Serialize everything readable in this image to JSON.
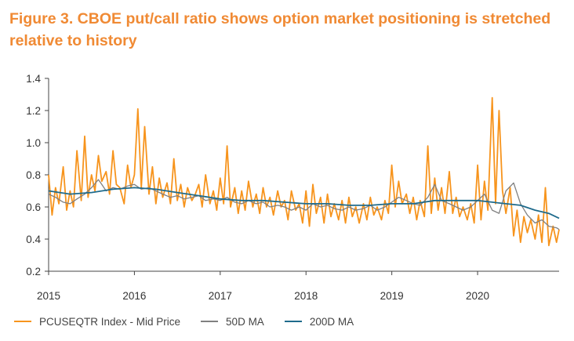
{
  "title": "Figure 3. CBOE put/call ratio shows option market positioning is stretched relative to history",
  "colors": {
    "title": "#F08A34",
    "orange": "#F7941D",
    "gray": "#808080",
    "teal": "#1F6B8C",
    "axis": "#444444"
  },
  "chart_data": {
    "type": "line",
    "title": "Figure 3. CBOE put/call ratio shows option market positioning is stretched relative to history",
    "xlabel": "",
    "ylabel": "",
    "xlim": [
      2015,
      2020.95
    ],
    "ylim": [
      0.2,
      1.4
    ],
    "yticks": [
      "0.2",
      "0.4",
      "0.6",
      "0.8",
      "1.0",
      "1.2",
      "1.4"
    ],
    "xticks": [
      "2015",
      "2016",
      "2017",
      "2018",
      "2019",
      "2020"
    ],
    "grid": false,
    "legend_position": "bottom",
    "series": [
      {
        "name": "PCUSEQTR Index - Mid Price",
        "color": "#F7941D",
        "x": [
          2015.0,
          2015.04,
          2015.08,
          2015.12,
          2015.17,
          2015.21,
          2015.25,
          2015.29,
          2015.33,
          2015.38,
          2015.42,
          2015.46,
          2015.5,
          2015.54,
          2015.58,
          2015.62,
          2015.67,
          2015.71,
          2015.75,
          2015.79,
          2015.83,
          2015.88,
          2015.92,
          2015.96,
          2016.0,
          2016.04,
          2016.08,
          2016.12,
          2016.17,
          2016.21,
          2016.25,
          2016.29,
          2016.33,
          2016.38,
          2016.42,
          2016.46,
          2016.5,
          2016.54,
          2016.58,
          2016.62,
          2016.67,
          2016.71,
          2016.75,
          2016.79,
          2016.83,
          2016.88,
          2016.92,
          2016.96,
          2017.0,
          2017.04,
          2017.08,
          2017.12,
          2017.17,
          2017.21,
          2017.25,
          2017.29,
          2017.33,
          2017.38,
          2017.42,
          2017.46,
          2017.5,
          2017.54,
          2017.58,
          2017.62,
          2017.67,
          2017.71,
          2017.75,
          2017.79,
          2017.83,
          2017.88,
          2017.92,
          2017.96,
          2018.0,
          2018.04,
          2018.08,
          2018.12,
          2018.17,
          2018.21,
          2018.25,
          2018.29,
          2018.33,
          2018.38,
          2018.42,
          2018.46,
          2018.5,
          2018.54,
          2018.58,
          2018.62,
          2018.67,
          2018.71,
          2018.75,
          2018.79,
          2018.83,
          2018.88,
          2018.92,
          2018.96,
          2019.0,
          2019.04,
          2019.08,
          2019.12,
          2019.17,
          2019.21,
          2019.25,
          2019.29,
          2019.33,
          2019.38,
          2019.42,
          2019.46,
          2019.5,
          2019.54,
          2019.58,
          2019.62,
          2019.67,
          2019.71,
          2019.75,
          2019.79,
          2019.83,
          2019.88,
          2019.92,
          2019.96,
          2020.0,
          2020.04,
          2020.08,
          2020.12,
          2020.17,
          2020.21,
          2020.25,
          2020.29,
          2020.33,
          2020.38,
          2020.42,
          2020.46,
          2020.5,
          2020.54,
          2020.58,
          2020.62,
          2020.67,
          2020.71,
          2020.75,
          2020.79,
          2020.83,
          2020.88,
          2020.92,
          2020.95
        ],
        "values": [
          0.8,
          0.55,
          0.72,
          0.62,
          0.85,
          0.58,
          0.7,
          0.6,
          0.95,
          0.64,
          1.04,
          0.66,
          0.8,
          0.7,
          0.92,
          0.76,
          0.82,
          0.68,
          0.95,
          0.74,
          0.72,
          0.62,
          0.86,
          0.72,
          0.8,
          1.21,
          0.72,
          1.1,
          0.68,
          0.85,
          0.62,
          0.78,
          0.66,
          0.75,
          0.62,
          0.9,
          0.64,
          0.74,
          0.6,
          0.72,
          0.64,
          0.68,
          0.74,
          0.6,
          0.8,
          0.62,
          0.7,
          0.58,
          0.78,
          0.62,
          0.98,
          0.6,
          0.72,
          0.56,
          0.7,
          0.58,
          0.76,
          0.6,
          0.68,
          0.56,
          0.72,
          0.6,
          0.66,
          0.55,
          0.7,
          0.6,
          0.64,
          0.52,
          0.7,
          0.58,
          0.62,
          0.5,
          0.7,
          0.48,
          0.74,
          0.56,
          0.66,
          0.5,
          0.68,
          0.54,
          0.62,
          0.52,
          0.64,
          0.5,
          0.66,
          0.54,
          0.6,
          0.5,
          0.62,
          0.52,
          0.66,
          0.55,
          0.6,
          0.52,
          0.64,
          0.56,
          0.86,
          0.6,
          0.76,
          0.62,
          0.68,
          0.56,
          0.66,
          0.52,
          0.64,
          0.54,
          0.98,
          0.56,
          0.78,
          0.58,
          0.72,
          0.56,
          0.82,
          0.56,
          0.66,
          0.54,
          0.6,
          0.52,
          0.62,
          0.5,
          0.86,
          0.52,
          0.76,
          0.58,
          1.28,
          0.62,
          1.2,
          0.7,
          0.56,
          0.72,
          0.42,
          0.58,
          0.38,
          0.54,
          0.44,
          0.52,
          0.4,
          0.55,
          0.38,
          0.72,
          0.36,
          0.48,
          0.38,
          0.46
        ]
      },
      {
        "name": "50D MA",
        "color": "#808080",
        "x": [
          2015.0,
          2015.08,
          2015.17,
          2015.25,
          2015.33,
          2015.42,
          2015.5,
          2015.58,
          2015.62,
          2015.67,
          2015.75,
          2015.83,
          2015.92,
          2016.0,
          2016.08,
          2016.17,
          2016.25,
          2016.33,
          2016.42,
          2016.5,
          2016.58,
          2016.67,
          2016.75,
          2016.83,
          2016.92,
          2017.0,
          2017.08,
          2017.17,
          2017.25,
          2017.33,
          2017.42,
          2017.5,
          2017.58,
          2017.67,
          2017.75,
          2017.83,
          2017.92,
          2018.0,
          2018.08,
          2018.17,
          2018.25,
          2018.33,
          2018.42,
          2018.5,
          2018.58,
          2018.67,
          2018.75,
          2018.83,
          2018.92,
          2019.0,
          2019.08,
          2019.17,
          2019.25,
          2019.33,
          2019.42,
          2019.5,
          2019.58,
          2019.67,
          2019.75,
          2019.83,
          2019.92,
          2020.0,
          2020.08,
          2020.17,
          2020.25,
          2020.33,
          2020.42,
          2020.5,
          2020.58,
          2020.67,
          2020.75,
          2020.83,
          2020.92,
          2020.95
        ],
        "values": [
          0.68,
          0.66,
          0.63,
          0.62,
          0.65,
          0.68,
          0.72,
          0.77,
          0.74,
          0.7,
          0.72,
          0.71,
          0.73,
          0.74,
          0.71,
          0.72,
          0.7,
          0.68,
          0.66,
          0.67,
          0.65,
          0.66,
          0.67,
          0.64,
          0.65,
          0.64,
          0.66,
          0.63,
          0.62,
          0.64,
          0.62,
          0.63,
          0.6,
          0.61,
          0.6,
          0.58,
          0.6,
          0.58,
          0.62,
          0.6,
          0.61,
          0.59,
          0.58,
          0.6,
          0.58,
          0.59,
          0.61,
          0.58,
          0.6,
          0.63,
          0.66,
          0.64,
          0.62,
          0.61,
          0.66,
          0.74,
          0.64,
          0.62,
          0.6,
          0.58,
          0.6,
          0.64,
          0.68,
          0.58,
          0.56,
          0.7,
          0.75,
          0.62,
          0.55,
          0.5,
          0.52,
          0.48,
          0.47,
          0.46
        ]
      },
      {
        "name": "200D MA",
        "color": "#1F6B8C",
        "x": [
          2015.0,
          2015.25,
          2015.5,
          2015.75,
          2016.0,
          2016.25,
          2016.5,
          2016.75,
          2017.0,
          2017.25,
          2017.5,
          2017.75,
          2018.0,
          2018.25,
          2018.5,
          2018.75,
          2019.0,
          2019.25,
          2019.5,
          2019.75,
          2020.0,
          2020.17,
          2020.33,
          2020.5,
          2020.67,
          2020.83,
          2020.95
        ],
        "values": [
          0.7,
          0.68,
          0.69,
          0.71,
          0.72,
          0.71,
          0.69,
          0.67,
          0.65,
          0.64,
          0.64,
          0.63,
          0.62,
          0.62,
          0.61,
          0.61,
          0.62,
          0.62,
          0.64,
          0.64,
          0.64,
          0.63,
          0.62,
          0.61,
          0.58,
          0.56,
          0.53
        ]
      }
    ]
  }
}
